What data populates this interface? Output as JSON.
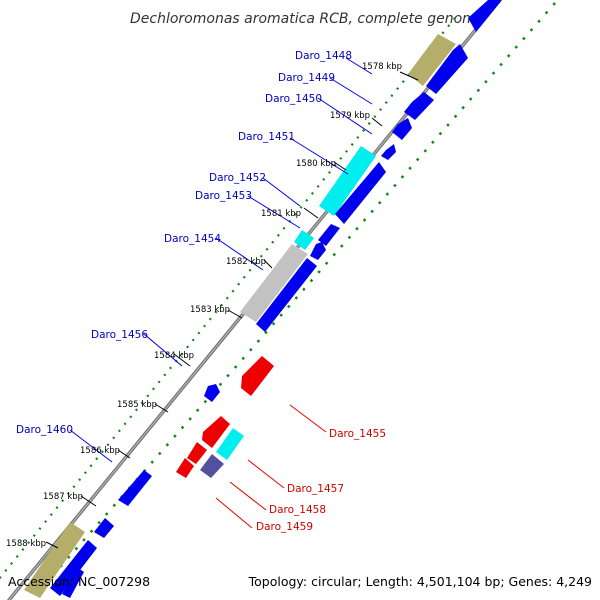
{
  "title": "Dechloromonas aromatica RCB, complete genome",
  "accession_label": "Accession: NC_007298",
  "topology_label": "Topology: circular; Length: 4,501,104 bp; Genes: 4,249",
  "colors": {
    "backbone": "#888888",
    "cds_blue": "#0000ee",
    "highlight_cyan": "#00eeee",
    "red": "#ee0000",
    "olive": "#b5ad6a",
    "gray": "#c2c2c2",
    "slate": "#5450a0",
    "tick_green": "#118811"
  },
  "kbp_marks": [
    "1578 kbp",
    "1579 kbp",
    "1580 kbp",
    "1581 kbp",
    "1582 kbp",
    "1583 kbp",
    "1584 kbp",
    "1585 kbp",
    "1586 kbp",
    "1587 kbp",
    "1588 kbp"
  ],
  "gene_labels": [
    {
      "text": "Daro_1448",
      "color": "blue"
    },
    {
      "text": "Daro_1449",
      "color": "blue"
    },
    {
      "text": "Daro_1450",
      "color": "blue"
    },
    {
      "text": "Daro_1451",
      "color": "blue"
    },
    {
      "text": "Daro_1452",
      "color": "blue"
    },
    {
      "text": "Daro_1453",
      "color": "blue"
    },
    {
      "text": "Daro_1454",
      "color": "blue"
    },
    {
      "text": "Daro_1456",
      "color": "blue"
    },
    {
      "text": "Daro_1460",
      "color": "blue"
    },
    {
      "text": "Daro_1455",
      "color": "red"
    },
    {
      "text": "Daro_1457",
      "color": "red"
    },
    {
      "text": "Daro_1458",
      "color": "red"
    },
    {
      "text": "Daro_1459",
      "color": "red"
    }
  ]
}
